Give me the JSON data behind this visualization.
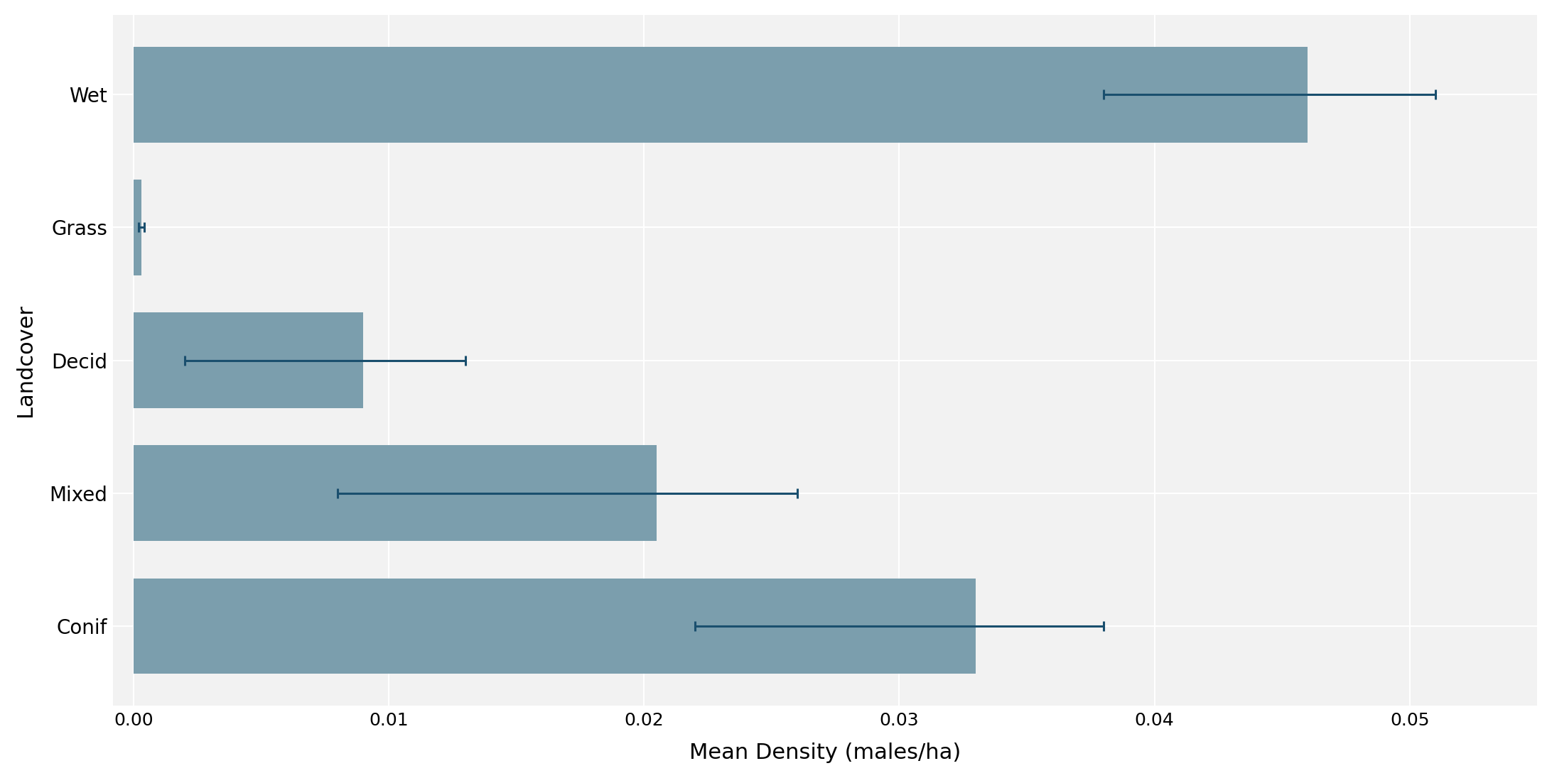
{
  "categories": [
    "Conif",
    "Mixed",
    "Decid",
    "Grass",
    "Wet"
  ],
  "values": [
    0.033,
    0.0205,
    0.009,
    0.0003,
    0.046
  ],
  "err_centers": [
    0.028,
    0.014,
    0.006,
    0.0003,
    0.043
  ],
  "err_low": [
    0.006,
    0.006,
    0.004,
    0.0001,
    0.005
  ],
  "err_high": [
    0.01,
    0.012,
    0.007,
    0.0001,
    0.008
  ],
  "bar_color": "#7B9EAD",
  "error_color": "#1A4F6E",
  "xlabel": "Mean Density (males/ha)",
  "ylabel": "Landcover",
  "xlim": [
    -0.0008,
    0.055
  ],
  "xticks": [
    0.0,
    0.01,
    0.02,
    0.03,
    0.04,
    0.05
  ],
  "background_color": "#FFFFFF",
  "panel_background": "#F2F2F2",
  "grid_color": "#FFFFFF",
  "bar_height": 0.72,
  "xlabel_fontsize": 22,
  "ylabel_fontsize": 22,
  "tick_fontsize": 18,
  "label_fontsize": 20,
  "error_capsize": 5,
  "error_linewidth": 2.2,
  "figure_width": 21.84,
  "figure_height": 10.96,
  "dpi": 100
}
